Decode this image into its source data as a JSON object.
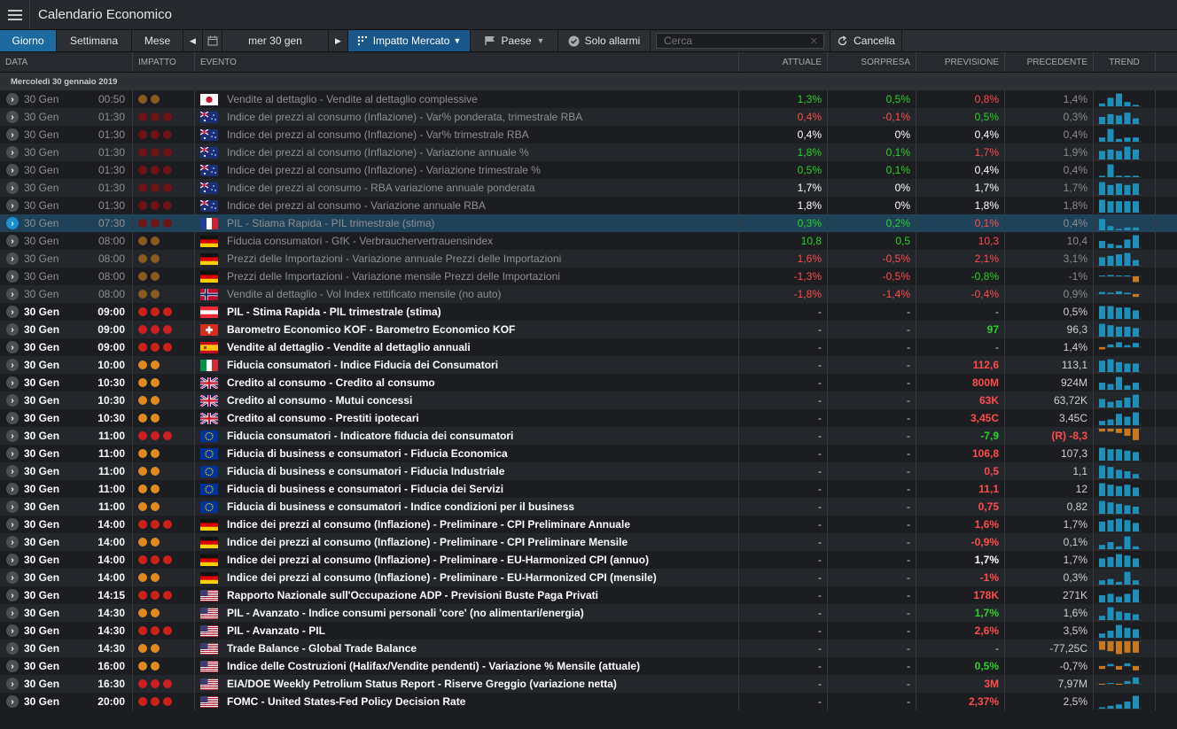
{
  "app": {
    "title": "Calendario Economico"
  },
  "toolbar": {
    "tabs": [
      "Giorno",
      "Settimana",
      "Mese"
    ],
    "date": "mer 30 gen",
    "impact": "Impatto Mercato",
    "country": "Paese",
    "alarms": "Solo allarmi",
    "search_placeholder": "Cerca",
    "cancel": "Cancella"
  },
  "columns": {
    "date": "DATA",
    "impact": "IMPATTO",
    "event": "EVENTO",
    "actual": "ATTUALE",
    "surprise": "SORPRESA",
    "forecast": "PREVISIONE",
    "previous": "PRECEDENTE",
    "trend": "TREND"
  },
  "group_label": "Mercoledì 30 gennaio 2019",
  "colors": {
    "high": "#d01e1e",
    "medium": "#e08a1e",
    "high_past": "#6e1414",
    "medium_past": "#8a5a1e",
    "bar": "#1e8fb8",
    "bar_neg": "#c8791e"
  },
  "rows": [
    {
      "date": "30 Gen",
      "time": "00:50",
      "imp": 2,
      "flag": "jp",
      "event": "Vendite al dettaglio - Vendite al dettaglio complessive",
      "actual": "1,3%",
      "ac": "green",
      "surprise": "0,5%",
      "sc": "green",
      "forecast": "0,8%",
      "fc": "red",
      "previous": "1,4%",
      "trend": [
        0.2,
        0.6,
        0.9,
        0.3,
        0.1
      ],
      "past": true
    },
    {
      "date": "30 Gen",
      "time": "01:30",
      "imp": 3,
      "flag": "au",
      "event": "Indice dei prezzi al consumo (Inflazione) - Var% ponderata, trimestrale RBA",
      "actual": "0,4%",
      "ac": "red",
      "surprise": "-0,1%",
      "sc": "red",
      "forecast": "0,5%",
      "fc": "green",
      "previous": "0,3%",
      "trend": [
        0.5,
        0.7,
        0.6,
        0.8,
        0.4
      ],
      "past": true
    },
    {
      "date": "30 Gen",
      "time": "01:30",
      "imp": 3,
      "flag": "au",
      "event": "Indice dei prezzi al consumo (Inflazione) - Var% trimestrale RBA",
      "actual": "0,4%",
      "ac": "white",
      "surprise": "0%",
      "sc": "white",
      "forecast": "0,4%",
      "fc": "white",
      "previous": "0,4%",
      "trend": [
        0.3,
        0.9,
        0.2,
        0.3,
        0.3
      ],
      "past": true
    },
    {
      "date": "30 Gen",
      "time": "01:30",
      "imp": 3,
      "flag": "au",
      "event": "Indice dei prezzi al consumo (Inflazione) - Variazione annuale %",
      "actual": "1,8%",
      "ac": "green",
      "surprise": "0,1%",
      "sc": "green",
      "forecast": "1,7%",
      "fc": "red",
      "previous": "1,9%",
      "trend": [
        0.6,
        0.7,
        0.6,
        0.9,
        0.7
      ],
      "past": true
    },
    {
      "date": "30 Gen",
      "time": "01:30",
      "imp": 3,
      "flag": "au",
      "event": "Indice dei prezzi al consumo (Inflazione) - Variazione trimestrale %",
      "actual": "0,5%",
      "ac": "green",
      "surprise": "0,1%",
      "sc": "green",
      "forecast": "0,4%",
      "fc": "white",
      "previous": "0,4%",
      "trend": [
        0.1,
        0.9,
        0.1,
        0.1,
        0.1
      ],
      "past": true
    },
    {
      "date": "30 Gen",
      "time": "01:30",
      "imp": 3,
      "flag": "au",
      "event": "Indice dei prezzi al consumo - RBA variazione annuale ponderata",
      "actual": "1,7%",
      "ac": "white",
      "surprise": "0%",
      "sc": "white",
      "forecast": "1,7%",
      "fc": "white",
      "previous": "1,7%",
      "trend": [
        0.9,
        0.7,
        0.8,
        0.7,
        0.8
      ],
      "past": true
    },
    {
      "date": "30 Gen",
      "time": "01:30",
      "imp": 3,
      "flag": "au",
      "event": "Indice dei prezzi al consumo - Variazione annuale RBA",
      "actual": "1,8%",
      "ac": "white",
      "surprise": "0%",
      "sc": "white",
      "forecast": "1,8%",
      "fc": "white",
      "previous": "1,8%",
      "trend": [
        0.9,
        0.8,
        0.8,
        0.8,
        0.8
      ],
      "past": true
    },
    {
      "date": "30 Gen",
      "time": "07:30",
      "imp": 3,
      "flag": "fr",
      "event": "PIL - Stiama Rapida - PIL trimestrale (stima)",
      "actual": "0,3%",
      "ac": "green",
      "surprise": "0,2%",
      "sc": "green",
      "forecast": "0,1%",
      "fc": "red",
      "previous": "0,4%",
      "trend": [
        0.8,
        0.3,
        0.1,
        0.2,
        0.2
      ],
      "past": true,
      "sel": true
    },
    {
      "date": "30 Gen",
      "time": "08:00",
      "imp": 2,
      "flag": "de",
      "event": "Fiducia consumatori - GfK - Verbrauchervertrauensindex",
      "actual": "10,8",
      "ac": "green",
      "surprise": "0,5",
      "sc": "green",
      "forecast": "10,3",
      "fc": "red",
      "previous": "10,4",
      "trend": [
        0.5,
        0.3,
        0.2,
        0.6,
        0.9
      ],
      "past": true
    },
    {
      "date": "30 Gen",
      "time": "08:00",
      "imp": 2,
      "flag": "de",
      "event": "Prezzi delle Importazioni - Variazione annuale Prezzi delle Importazioni",
      "actual": "1,6%",
      "ac": "red",
      "surprise": "-0,5%",
      "sc": "red",
      "forecast": "2,1%",
      "fc": "red",
      "previous": "3,1%",
      "trend": [
        0.6,
        0.7,
        0.8,
        0.9,
        0.4
      ],
      "past": true
    },
    {
      "date": "30 Gen",
      "time": "08:00",
      "imp": 2,
      "flag": "de",
      "event": "Prezzi delle Importazioni - Variazione mensile Prezzi delle Importazioni",
      "actual": "-1,3%",
      "ac": "red",
      "surprise": "-0,5%",
      "sc": "red",
      "forecast": "-0,8%",
      "fc": "green",
      "previous": "-1%",
      "trend": [
        0.1,
        0.2,
        0.1,
        0.1,
        -0.8
      ],
      "past": true
    },
    {
      "date": "30 Gen",
      "time": "08:00",
      "imp": 2,
      "flag": "no",
      "event": "Vendite al dettaglio - Vol Index rettificato mensile (no auto)",
      "actual": "-1,8%",
      "ac": "red",
      "surprise": "-1,4%",
      "sc": "red",
      "forecast": "-0,4%",
      "fc": "red",
      "previous": "0,9%",
      "trend": [
        0.3,
        0.2,
        0.4,
        0.2,
        -0.4
      ],
      "past": true
    },
    {
      "date": "30 Gen",
      "time": "09:00",
      "imp": 3,
      "flag": "at",
      "event": "PIL - Stima Rapida - PIL trimestrale (stima)",
      "actual": "-",
      "ac": "grey",
      "surprise": "-",
      "sc": "grey",
      "forecast": "-",
      "fc": "grey",
      "previous": "0,5%",
      "trend": [
        0.9,
        0.9,
        0.8,
        0.8,
        0.6
      ]
    },
    {
      "date": "30 Gen",
      "time": "09:00",
      "imp": 3,
      "flag": "ch",
      "event": "Barometro Economico KOF - Barometro Economico KOF",
      "actual": "-",
      "ac": "grey",
      "surprise": "-",
      "sc": "grey",
      "forecast": "97",
      "fc": "green",
      "previous": "96,3",
      "trend": [
        0.9,
        0.8,
        0.7,
        0.7,
        0.6
      ]
    },
    {
      "date": "30 Gen",
      "time": "09:00",
      "imp": 3,
      "flag": "es",
      "event": "Vendite al dettaglio - Vendite al dettaglio annuali",
      "actual": "-",
      "ac": "grey",
      "surprise": "-",
      "sc": "grey",
      "forecast": "-",
      "fc": "grey",
      "previous": "1,4%",
      "trend": [
        -0.3,
        0.4,
        0.7,
        0.3,
        0.6
      ]
    },
    {
      "date": "30 Gen",
      "time": "10:00",
      "imp": 2,
      "flag": "it",
      "event": "Fiducia consumatori - Indice Fiducia dei Consumatori",
      "actual": "-",
      "ac": "grey",
      "surprise": "-",
      "sc": "grey",
      "forecast": "112,6",
      "fc": "red",
      "previous": "113,1",
      "trend": [
        0.8,
        0.9,
        0.7,
        0.6,
        0.6
      ]
    },
    {
      "date": "30 Gen",
      "time": "10:30",
      "imp": 2,
      "flag": "gb",
      "event": "Credito al consumo - Credito al consumo",
      "actual": "-",
      "ac": "grey",
      "surprise": "-",
      "sc": "grey",
      "forecast": "800M",
      "fc": "red",
      "previous": "924M",
      "trend": [
        0.5,
        0.4,
        0.9,
        0.3,
        0.5
      ]
    },
    {
      "date": "30 Gen",
      "time": "10:30",
      "imp": 2,
      "flag": "gb",
      "event": "Credito al consumo - Mutui concessi",
      "actual": "-",
      "ac": "grey",
      "surprise": "-",
      "sc": "grey",
      "forecast": "63K",
      "fc": "red",
      "previous": "63,72K",
      "trend": [
        0.6,
        0.4,
        0.5,
        0.7,
        0.9
      ]
    },
    {
      "date": "30 Gen",
      "time": "10:30",
      "imp": 2,
      "flag": "gb",
      "event": "Credito al consumo - Prestiti ipotecari",
      "actual": "-",
      "ac": "grey",
      "surprise": "-",
      "sc": "grey",
      "forecast": "3,45C",
      "fc": "red",
      "previous": "3,45C",
      "trend": [
        0.3,
        0.4,
        0.8,
        0.6,
        0.9
      ]
    },
    {
      "date": "30 Gen",
      "time": "11:00",
      "imp": 3,
      "flag": "eu",
      "event": "Fiducia consumatori - Indicatore fiducia dei consumatori",
      "actual": "-",
      "ac": "grey",
      "surprise": "-",
      "sc": "grey",
      "forecast": "-7,9",
      "fc": "green",
      "previous": "(R) -8,3",
      "pc": "red",
      "trend": [
        -0.2,
        -0.2,
        -0.3,
        -0.5,
        -0.8
      ]
    },
    {
      "date": "30 Gen",
      "time": "11:00",
      "imp": 2,
      "flag": "eu",
      "event": "Fiducia di business e consumatori - Fiducia Economica",
      "actual": "-",
      "ac": "grey",
      "surprise": "-",
      "sc": "grey",
      "forecast": "106,8",
      "fc": "red",
      "previous": "107,3",
      "trend": [
        0.9,
        0.8,
        0.8,
        0.7,
        0.6
      ]
    },
    {
      "date": "30 Gen",
      "time": "11:00",
      "imp": 2,
      "flag": "eu",
      "event": "Fiducia di business e consumatori - Fiducia Industriale",
      "actual": "-",
      "ac": "grey",
      "surprise": "-",
      "sc": "grey",
      "forecast": "0,5",
      "fc": "red",
      "previous": "1,1",
      "trend": [
        0.9,
        0.8,
        0.6,
        0.5,
        0.3
      ]
    },
    {
      "date": "30 Gen",
      "time": "11:00",
      "imp": 2,
      "flag": "eu",
      "event": "Fiducia di business e consumatori - Fiducia dei Servizi",
      "actual": "-",
      "ac": "grey",
      "surprise": "-",
      "sc": "grey",
      "forecast": "11,1",
      "fc": "red",
      "previous": "12",
      "trend": [
        0.9,
        0.8,
        0.7,
        0.8,
        0.6
      ]
    },
    {
      "date": "30 Gen",
      "time": "11:00",
      "imp": 2,
      "flag": "eu",
      "event": "Fiducia di business e consumatori - Indice condizioni per il business",
      "actual": "-",
      "ac": "grey",
      "surprise": "-",
      "sc": "grey",
      "forecast": "0,75",
      "fc": "red",
      "previous": "0,82",
      "trend": [
        0.9,
        0.8,
        0.7,
        0.6,
        0.5
      ]
    },
    {
      "date": "30 Gen",
      "time": "14:00",
      "imp": 3,
      "flag": "de",
      "event": "Indice dei prezzi al consumo (Inflazione) - Preliminare - CPI Preliminare Annuale",
      "actual": "-",
      "ac": "grey",
      "surprise": "-",
      "sc": "grey",
      "forecast": "1,6%",
      "fc": "red",
      "previous": "1,7%",
      "trend": [
        0.7,
        0.8,
        0.9,
        0.8,
        0.6
      ]
    },
    {
      "date": "30 Gen",
      "time": "14:00",
      "imp": 2,
      "flag": "de",
      "event": "Indice dei prezzi al consumo (Inflazione) - Preliminare - CPI Preliminare Mensile",
      "actual": "-",
      "ac": "grey",
      "surprise": "-",
      "sc": "grey",
      "forecast": "-0,9%",
      "fc": "red",
      "previous": "0,1%",
      "trend": [
        0.3,
        0.5,
        0.2,
        0.9,
        0.2
      ]
    },
    {
      "date": "30 Gen",
      "time": "14:00",
      "imp": 3,
      "flag": "de",
      "event": "Indice dei prezzi al consumo (Inflazione) - Preliminare - EU-Harmonized CPI (annuo)",
      "actual": "-",
      "ac": "grey",
      "surprise": "-",
      "sc": "grey",
      "forecast": "1,7%",
      "fc": "white",
      "previous": "1,7%",
      "trend": [
        0.6,
        0.7,
        0.9,
        0.8,
        0.6
      ]
    },
    {
      "date": "30 Gen",
      "time": "14:00",
      "imp": 2,
      "flag": "de",
      "event": "Indice dei prezzi al consumo (Inflazione) - Preliminare - EU-Harmonized CPI (mensile)",
      "actual": "-",
      "ac": "grey",
      "surprise": "-",
      "sc": "grey",
      "forecast": "-1%",
      "fc": "red",
      "previous": "0,3%",
      "trend": [
        0.3,
        0.4,
        0.2,
        0.9,
        0.3
      ]
    },
    {
      "date": "30 Gen",
      "time": "14:15",
      "imp": 3,
      "flag": "us",
      "event": "Rapporto Nazionale sull'Occupazione ADP - Previsioni Buste Paga Privati",
      "actual": "-",
      "ac": "grey",
      "surprise": "-",
      "sc": "grey",
      "forecast": "178K",
      "fc": "red",
      "previous": "271K",
      "trend": [
        0.5,
        0.6,
        0.4,
        0.6,
        0.9
      ]
    },
    {
      "date": "30 Gen",
      "time": "14:30",
      "imp": 2,
      "flag": "us",
      "event": "PIL - Avanzato - Indice consumi personali 'core' (no alimentari/energia)",
      "actual": "-",
      "ac": "grey",
      "surprise": "-",
      "sc": "grey",
      "forecast": "1,7%",
      "fc": "green",
      "previous": "1,6%",
      "trend": [
        0.3,
        0.9,
        0.6,
        0.5,
        0.4
      ]
    },
    {
      "date": "30 Gen",
      "time": "14:30",
      "imp": 3,
      "flag": "us",
      "event": "PIL - Avanzato - PIL",
      "actual": "-",
      "ac": "grey",
      "surprise": "-",
      "sc": "grey",
      "forecast": "2,6%",
      "fc": "red",
      "previous": "3,5%",
      "trend": [
        0.3,
        0.5,
        0.9,
        0.7,
        0.6
      ]
    },
    {
      "date": "30 Gen",
      "time": "14:30",
      "imp": 2,
      "flag": "us",
      "event": "Trade Balance - Global Trade Balance",
      "actual": "-",
      "ac": "grey",
      "surprise": "-",
      "sc": "grey",
      "forecast": "-",
      "fc": "grey",
      "previous": "-77,25C",
      "trend": [
        -0.6,
        -0.7,
        -0.9,
        -0.8,
        -0.8
      ]
    },
    {
      "date": "30 Gen",
      "time": "16:00",
      "imp": 2,
      "flag": "us",
      "event": "Indice delle Costruzioni (Halifax/Vendite pendenti) - Variazione % Mensile (attuale)",
      "actual": "-",
      "ac": "grey",
      "surprise": "-",
      "sc": "grey",
      "forecast": "0,5%",
      "fc": "green",
      "previous": "-0,7%",
      "trend": [
        -0.4,
        0.3,
        -0.5,
        0.4,
        -0.6
      ]
    },
    {
      "date": "30 Gen",
      "time": "16:30",
      "imp": 3,
      "flag": "us",
      "event": "EIA/DOE Weekly Petrolium Status Report - Riserve Greggio (variazione netta)",
      "actual": "-",
      "ac": "grey",
      "surprise": "-",
      "sc": "grey",
      "forecast": "3M",
      "fc": "red",
      "previous": "7,97M",
      "trend": [
        -0.1,
        0.1,
        -0.1,
        0.4,
        0.9
      ]
    },
    {
      "date": "30 Gen",
      "time": "20:00",
      "imp": 3,
      "flag": "us",
      "event": "FOMC - United States-Fed Policy Decision Rate",
      "actual": "-",
      "ac": "grey",
      "surprise": "-",
      "sc": "grey",
      "forecast": "2,37%",
      "fc": "red",
      "previous": "2,5%",
      "trend": [
        0.1,
        0.2,
        0.3,
        0.5,
        0.9
      ]
    }
  ]
}
